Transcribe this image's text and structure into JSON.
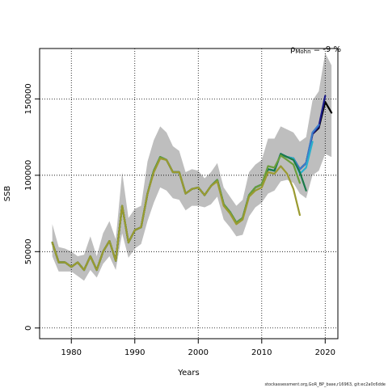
{
  "chart_data": {
    "type": "line",
    "title": "",
    "xlabel": "Years",
    "ylabel": "SSB",
    "xlim": [
      1975,
      2022
    ],
    "ylim": [
      -7000,
      183000
    ],
    "x_ticks": [
      1980,
      1990,
      2000,
      2010,
      2020
    ],
    "y_ticks": [
      0,
      50000,
      100000,
      150000
    ],
    "y_tick_labels": [
      "0",
      "50000",
      "100000",
      "150000"
    ],
    "grid": true,
    "grid_style": "dotted",
    "annotation": {
      "symbol": "ρ",
      "subscript": "Mohn",
      "text": " = -9 %"
    },
    "footer": "stockassessment.org,GoR_BP_base,r16963, git:ec2a0c6dde",
    "band": {
      "x": [
        1977,
        1978,
        1979,
        1980,
        1981,
        1982,
        1983,
        1984,
        1985,
        1986,
        1987,
        1988,
        1989,
        1990,
        1991,
        1992,
        1993,
        1994,
        1995,
        1996,
        1997,
        1998,
        1999,
        2000,
        2001,
        2002,
        2003,
        2004,
        2005,
        2006,
        2007,
        2008,
        2009,
        2010,
        2011,
        2012,
        2013,
        2014,
        2015,
        2016,
        2017,
        2018,
        2019,
        2020,
        2021
      ],
      "lower": [
        47000,
        37000,
        37000,
        37000,
        34000,
        31000,
        38000,
        33000,
        42000,
        47000,
        38000,
        62000,
        46000,
        52000,
        55000,
        70000,
        82000,
        92000,
        90000,
        85000,
        84000,
        77000,
        80000,
        80000,
        79000,
        81000,
        86000,
        71000,
        66000,
        60000,
        61000,
        73000,
        79000,
        82000,
        88000,
        90000,
        96000,
        97000,
        95000,
        88000,
        85000,
        100000,
        103000,
        114000,
        112000
      ],
      "upper": [
        68000,
        53000,
        52000,
        50000,
        47000,
        48000,
        60000,
        47000,
        62000,
        70000,
        58000,
        102000,
        72000,
        78000,
        80000,
        109000,
        123000,
        132000,
        128000,
        119000,
        116000,
        102000,
        104000,
        103000,
        98000,
        102000,
        108000,
        92000,
        86000,
        80000,
        84000,
        102000,
        107000,
        110000,
        124000,
        124000,
        132000,
        130000,
        128000,
        122000,
        125000,
        149000,
        155000,
        180000,
        172000
      ]
    },
    "series": [
      {
        "name": "",
        "color": "#000000",
        "x": [
          1977,
          1978,
          1979,
          1980,
          1981,
          1982,
          1983,
          1984,
          1985,
          1986,
          1987,
          1988,
          1989,
          1990,
          1991,
          1992,
          1993,
          1994,
          1995,
          1996,
          1997,
          1998,
          1999,
          2000,
          2001,
          2002,
          2003,
          2004,
          2005,
          2006,
          2007,
          2008,
          2009,
          2010,
          2011,
          2012,
          2013,
          2014,
          2015,
          2016,
          2017,
          2018,
          2019,
          2020,
          2021
        ],
        "values": [
          56000,
          43000,
          43000,
          40000,
          43000,
          38000,
          47000,
          38000,
          50000,
          57000,
          44000,
          80000,
          56000,
          64000,
          66000,
          88000,
          103000,
          112000,
          110000,
          102000,
          102000,
          88000,
          91000,
          92000,
          87000,
          93000,
          97000,
          81000,
          76000,
          69000,
          72000,
          87000,
          92000,
          94000,
          104000,
          103000,
          114000,
          112000,
          111000,
          104000,
          108000,
          127000,
          131000,
          148000,
          141000
        ]
      },
      {
        "name": "",
        "color": "#1a1a8a",
        "x": [
          1977,
          1978,
          1979,
          1980,
          1981,
          1982,
          1983,
          1984,
          1985,
          1986,
          1987,
          1988,
          1989,
          1990,
          1991,
          1992,
          1993,
          1994,
          1995,
          1996,
          1997,
          1998,
          1999,
          2000,
          2001,
          2002,
          2003,
          2004,
          2005,
          2006,
          2007,
          2008,
          2009,
          2010,
          2011,
          2012,
          2013,
          2014,
          2015,
          2016,
          2017,
          2018,
          2019,
          2020
        ],
        "values": [
          56000,
          43000,
          43000,
          40000,
          43000,
          38000,
          47000,
          38000,
          50000,
          57000,
          44000,
          80000,
          56000,
          64000,
          66000,
          88000,
          103000,
          112000,
          110000,
          102000,
          102000,
          88000,
          91000,
          92000,
          87000,
          93000,
          97000,
          81000,
          76000,
          69000,
          72000,
          87000,
          92000,
          94000,
          104000,
          103000,
          114000,
          112000,
          111000,
          104000,
          108000,
          127000,
          132000,
          152000
        ]
      },
      {
        "name": "",
        "color": "#3a7cc9",
        "x": [
          1977,
          1978,
          1979,
          1980,
          1981,
          1982,
          1983,
          1984,
          1985,
          1986,
          1987,
          1988,
          1989,
          1990,
          1991,
          1992,
          1993,
          1994,
          1995,
          1996,
          1997,
          1998,
          1999,
          2000,
          2001,
          2002,
          2003,
          2004,
          2005,
          2006,
          2007,
          2008,
          2009,
          2010,
          2011,
          2012,
          2013,
          2014,
          2015,
          2016,
          2017,
          2018,
          2019
        ],
        "values": [
          56000,
          43000,
          43000,
          40000,
          43000,
          38000,
          47000,
          38000,
          50000,
          57000,
          44000,
          80000,
          56000,
          64000,
          66000,
          88000,
          103000,
          112000,
          110000,
          102000,
          102000,
          88000,
          91000,
          92000,
          87000,
          93000,
          97000,
          81000,
          76000,
          69000,
          72000,
          87000,
          92000,
          94000,
          104000,
          103000,
          114000,
          112000,
          111000,
          104000,
          108000,
          128000,
          133000
        ]
      },
      {
        "name": "",
        "color": "#2ab0cc",
        "x": [
          1977,
          1978,
          1979,
          1980,
          1981,
          1982,
          1983,
          1984,
          1985,
          1986,
          1987,
          1988,
          1989,
          1990,
          1991,
          1992,
          1993,
          1994,
          1995,
          1996,
          1997,
          1998,
          1999,
          2000,
          2001,
          2002,
          2003,
          2004,
          2005,
          2006,
          2007,
          2008,
          2009,
          2010,
          2011,
          2012,
          2013,
          2014,
          2015,
          2016,
          2017,
          2018
        ],
        "values": [
          56000,
          43000,
          43000,
          40000,
          43000,
          38000,
          47000,
          38000,
          50000,
          57000,
          44000,
          80000,
          56000,
          64000,
          66000,
          88000,
          103000,
          112000,
          110000,
          102000,
          102000,
          88000,
          91000,
          92000,
          87000,
          93000,
          97000,
          81000,
          76000,
          69000,
          72000,
          87000,
          92000,
          94000,
          104000,
          103000,
          114000,
          112000,
          111000,
          101000,
          105000,
          122000
        ]
      },
      {
        "name": "",
        "color": "#1a7a4a",
        "x": [
          1977,
          1978,
          1979,
          1980,
          1981,
          1982,
          1983,
          1984,
          1985,
          1986,
          1987,
          1988,
          1989,
          1990,
          1991,
          1992,
          1993,
          1994,
          1995,
          1996,
          1997,
          1998,
          1999,
          2000,
          2001,
          2002,
          2003,
          2004,
          2005,
          2006,
          2007,
          2008,
          2009,
          2010,
          2011,
          2012,
          2013,
          2014,
          2015,
          2016,
          2017
        ],
        "values": [
          56000,
          43000,
          43000,
          40000,
          43000,
          38000,
          47000,
          38000,
          50000,
          57000,
          44000,
          80000,
          56000,
          64000,
          66000,
          88000,
          103000,
          112000,
          110000,
          102000,
          102000,
          88000,
          91000,
          92000,
          87000,
          93000,
          97000,
          81000,
          76000,
          69000,
          72000,
          87000,
          92000,
          94000,
          104000,
          103000,
          114000,
          112000,
          110000,
          102000,
          90000
        ]
      },
      {
        "name": "",
        "color": "#6a9e3a",
        "x": [
          1977,
          1978,
          1979,
          1980,
          1981,
          1982,
          1983,
          1984,
          1985,
          1986,
          1987,
          1988,
          1989,
          1990,
          1991,
          1992,
          1993,
          1994,
          1995,
          1996,
          1997,
          1998,
          1999,
          2000,
          2001,
          2002,
          2003,
          2004,
          2005,
          2006,
          2007,
          2008,
          2009,
          2010,
          2011,
          2012,
          2013,
          2014,
          2015,
          2016
        ],
        "values": [
          56000,
          43000,
          43000,
          40000,
          43000,
          38000,
          47000,
          38000,
          50000,
          57000,
          44000,
          80000,
          56000,
          64000,
          66000,
          88000,
          103000,
          112000,
          110000,
          102000,
          102000,
          88000,
          91000,
          92000,
          87000,
          93000,
          97000,
          81000,
          76000,
          69000,
          72000,
          87000,
          92000,
          94000,
          106000,
          105000,
          113000,
          110000,
          107000,
          95000
        ]
      },
      {
        "name": "",
        "color": "#9a9a30",
        "x": [
          1977,
          1978,
          1979,
          1980,
          1981,
          1982,
          1983,
          1984,
          1985,
          1986,
          1987,
          1988,
          1989,
          1990,
          1991,
          1992,
          1993,
          1994,
          1995,
          1996,
          1997,
          1998,
          1999,
          2000,
          2001,
          2002,
          2003,
          2004,
          2005,
          2006,
          2007,
          2008,
          2009,
          2010,
          2011,
          2012,
          2013,
          2014,
          2015,
          2016
        ],
        "values": [
          56000,
          43000,
          43000,
          40000,
          43000,
          38000,
          47000,
          38000,
          50000,
          57000,
          44000,
          80000,
          56000,
          64000,
          66000,
          88000,
          102000,
          111000,
          110000,
          102000,
          102000,
          88000,
          91000,
          92000,
          87000,
          93000,
          96000,
          80000,
          75000,
          68000,
          71000,
          86000,
          90000,
          92000,
          102000,
          101000,
          106000,
          101000,
          91000,
          74000
        ]
      }
    ]
  }
}
